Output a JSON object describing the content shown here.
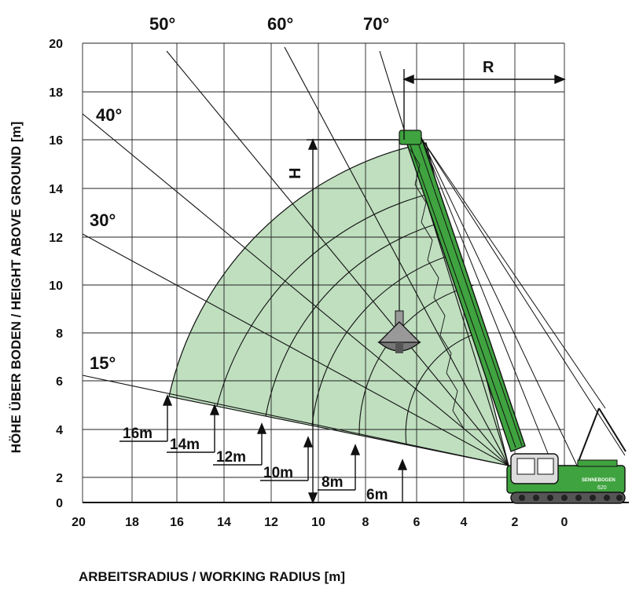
{
  "angle_labels": {
    "a15": "15°",
    "a30": "30°",
    "a40": "40°",
    "a50": "50°",
    "a60": "60°",
    "a70": "70°"
  },
  "axes": {
    "x_title": "ARBEITSRADIUS / WORKING RADIUS [m]",
    "y_title": "HÖHE ÜBER BODEN / HEIGHT ABOVE GROUND [m]",
    "x_ticks": [
      "20",
      "18",
      "16",
      "14",
      "12",
      "10",
      "8",
      "6",
      "4",
      "2",
      "0"
    ],
    "y_ticks": [
      "0",
      "2",
      "4",
      "6",
      "8",
      "10",
      "12",
      "14",
      "16",
      "18",
      "20"
    ]
  },
  "radius_labels": {
    "r16": "16m",
    "r14": "14m",
    "r12": "12m",
    "r10": "10m",
    "r8": "8m",
    "r6": "6m"
  },
  "dimension_labels": {
    "R": "R",
    "H": "H"
  },
  "machine": {
    "brand": "SENNEBOGEN",
    "model": "620"
  },
  "colors": {
    "envelope": "#bfdfbf",
    "machine_green": "#3fa33f",
    "line": "#111111"
  }
}
